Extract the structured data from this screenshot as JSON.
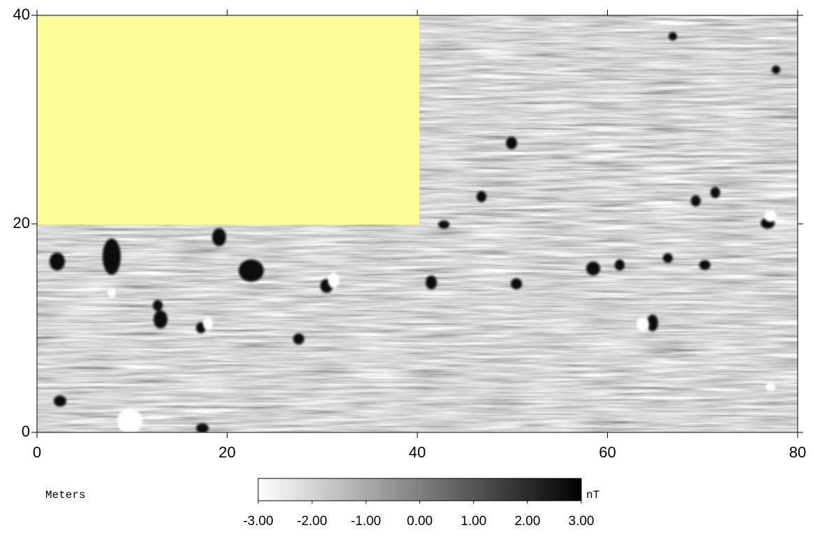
{
  "chart_data": {
    "type": "map",
    "x_label": "Meters",
    "xlim": [
      0,
      80
    ],
    "xticks": [
      0,
      20,
      40,
      60,
      80
    ],
    "ylim": [
      0,
      40
    ],
    "yticks": [
      0,
      20,
      40
    ],
    "colorbar": {
      "unit": "nT",
      "lim": [
        -3,
        3
      ],
      "colors": [
        "#ffffff",
        "#000000"
      ],
      "ticks": [
        {
          "value": -3,
          "label": "-3.00"
        },
        {
          "value": -2,
          "label": "-2.00"
        },
        {
          "value": -1,
          "label": "-1.00"
        },
        {
          "value": 0,
          "label": "0.00"
        },
        {
          "value": 1,
          "label": "1.00"
        },
        {
          "value": 2,
          "label": "2.00"
        },
        {
          "value": 3,
          "label": "3.00"
        }
      ]
    }
  }
}
